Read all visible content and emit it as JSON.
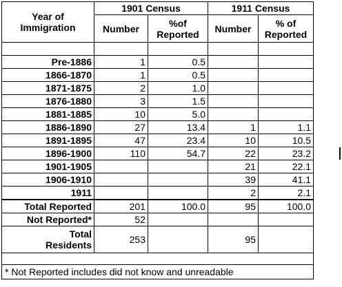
{
  "header": {
    "year_label": "Year of\nImmigration",
    "census1901": "1901 Census",
    "census1911": "1911 Census",
    "number": "Number",
    "pct1901": "%of\nReported",
    "pct1911": "% of\nReported"
  },
  "rows": [
    {
      "label": "Pre-1886",
      "n1901": "1",
      "p1901": "0.5",
      "n1911": "",
      "p1911": ""
    },
    {
      "label": "1866-1870",
      "n1901": "1",
      "p1901": "0.5",
      "n1911": "",
      "p1911": ""
    },
    {
      "label": "1871-1875",
      "n1901": "2",
      "p1901": "1.0",
      "n1911": "",
      "p1911": ""
    },
    {
      "label": "1876-1880",
      "n1901": "3",
      "p1901": "1.5",
      "n1911": "",
      "p1911": ""
    },
    {
      "label": "1881-1885",
      "n1901": "10",
      "p1901": "5.0",
      "n1911": "",
      "p1911": ""
    },
    {
      "label": "1886-1890",
      "n1901": "27",
      "p1901": "13.4",
      "n1911": "1",
      "p1911": "1.1"
    },
    {
      "label": "1891-1895",
      "n1901": "47",
      "p1901": "23.4",
      "n1911": "10",
      "p1911": "10.5"
    },
    {
      "label": "1896-1900",
      "n1901": "110",
      "p1901": "54.7",
      "n1911": "22",
      "p1911": "23.2"
    },
    {
      "label": "1901-1905",
      "n1901": "",
      "p1901": "",
      "n1911": "21",
      "p1911": "22.1"
    },
    {
      "label": "1906-1910",
      "n1901": "",
      "p1901": "",
      "n1911": "39",
      "p1911": "41.1"
    },
    {
      "label": "1911",
      "n1901": "",
      "p1901": "",
      "n1911": "2",
      "p1911": "2.1"
    }
  ],
  "totals": {
    "reported_label": "Total Reported",
    "reported_n1901": "201",
    "reported_p1901": "100.0",
    "reported_n1911": "95",
    "reported_p1911": "100.0",
    "not_reported_label": "Not Reported*",
    "not_reported_n1901": "52",
    "residents_label": "Total\nResidents",
    "residents_n1901": "253",
    "residents_n1911": "95"
  },
  "footnote": "* Not Reported includes did not know and unreadable"
}
